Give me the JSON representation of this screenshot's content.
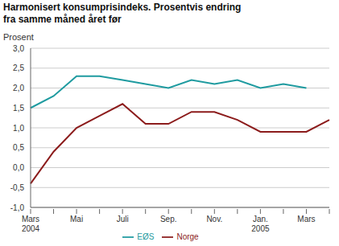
{
  "chart_data": {
    "type": "line",
    "title": "Harmonisert konsumprisindeks. Prosentvis endring fra samme måned året før",
    "y_label": "Prosent",
    "categories": [
      "Mars\n2004",
      null,
      "Mai",
      null,
      "Juli",
      null,
      "Sep.",
      null,
      "Nov.",
      null,
      "Jan.\n2005",
      null,
      "Mars",
      null
    ],
    "series": [
      {
        "name": "EØS",
        "color": "#1f9ba0",
        "values": [
          1.5,
          1.8,
          2.3,
          2.3,
          2.2,
          2.1,
          2.0,
          2.2,
          2.1,
          2.2,
          2.0,
          2.1,
          2.0,
          null
        ]
      },
      {
        "name": "Norge",
        "color": "#8c1c1c",
        "values": [
          -0.4,
          0.4,
          1.0,
          1.3,
          1.6,
          1.1,
          1.1,
          1.4,
          1.4,
          1.2,
          0.9,
          0.9,
          0.9,
          1.2
        ]
      }
    ],
    "ylim": [
      -1.0,
      3.0
    ],
    "yticks": [
      {
        "value": -1.0,
        "label": "-1,0"
      },
      {
        "value": -0.5,
        "label": "-0,5"
      },
      {
        "value": 0.0,
        "label": "0,0"
      },
      {
        "value": 0.5,
        "label": "0,5"
      },
      {
        "value": 1.0,
        "label": "1,0"
      },
      {
        "value": 1.5,
        "label": "1,5"
      },
      {
        "value": 2.0,
        "label": "2,0"
      },
      {
        "value": 2.5,
        "label": "2,5"
      },
      {
        "value": 3.0,
        "label": "3,0"
      }
    ],
    "grid": true,
    "legend": "bottom"
  }
}
